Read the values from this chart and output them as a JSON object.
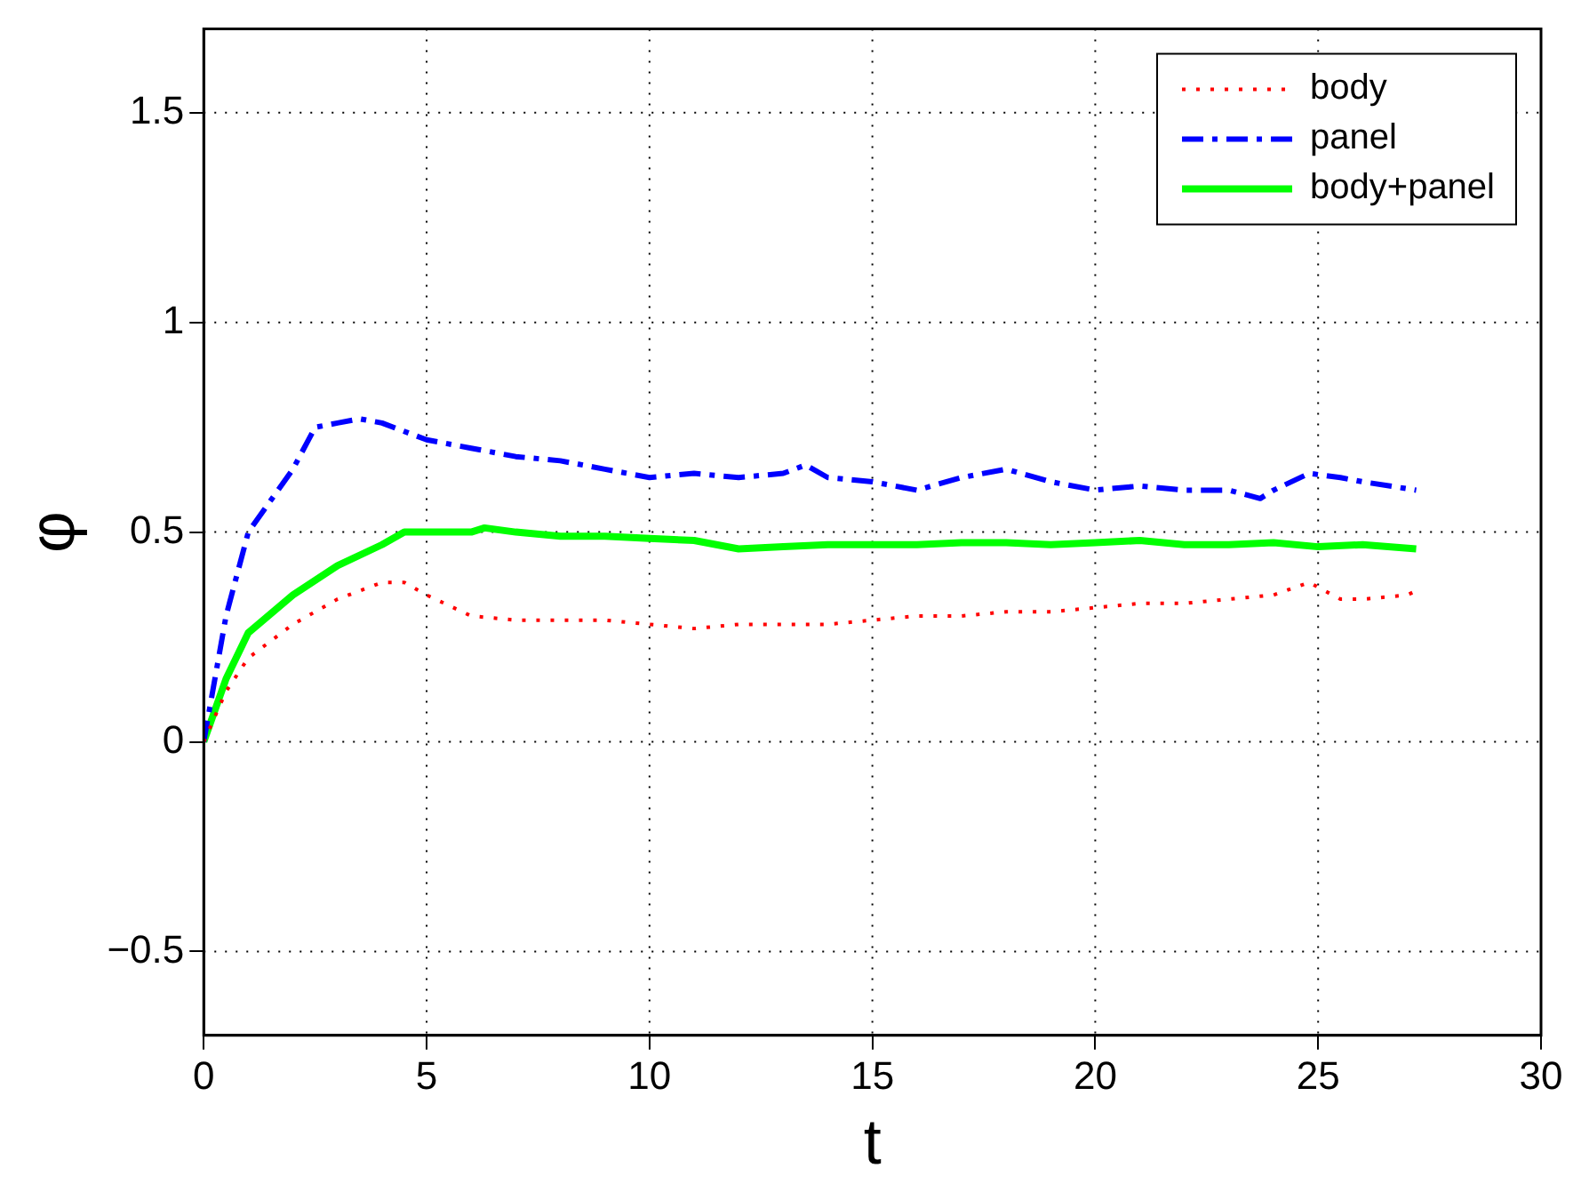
{
  "chart_data": {
    "type": "line",
    "xlabel": "t",
    "ylabel": "φ",
    "xlim": [
      0,
      30
    ],
    "xticks": [
      0,
      5,
      10,
      15,
      20,
      25,
      30
    ],
    "ylim": [
      -0.7,
      1.7
    ],
    "yticks": [
      {
        "value": -0.5,
        "label": "−0.5"
      },
      0,
      0.5,
      1,
      1.5
    ],
    "grid": true,
    "legend": "top right",
    "marker": "none",
    "series": [
      {
        "name": "body",
        "color": "#ff0000",
        "line_style": "dotted",
        "x": [
          0,
          0.5,
          1,
          2,
          3,
          4,
          4.5,
          5,
          6,
          7,
          8,
          9,
          10,
          11,
          12,
          13,
          14,
          15,
          16,
          17,
          18,
          19,
          20,
          21,
          22,
          23,
          24,
          24.8,
          25.5,
          26,
          27,
          27.2
        ],
        "values": [
          0,
          0.12,
          0.2,
          0.28,
          0.34,
          0.38,
          0.38,
          0.35,
          0.3,
          0.29,
          0.29,
          0.29,
          0.28,
          0.27,
          0.28,
          0.28,
          0.28,
          0.29,
          0.3,
          0.3,
          0.31,
          0.31,
          0.32,
          0.33,
          0.33,
          0.34,
          0.35,
          0.38,
          0.34,
          0.34,
          0.35,
          0.36
        ]
      },
      {
        "name": "panel",
        "color": "#0000ff",
        "line_style": "dashdot",
        "x": [
          0,
          0.5,
          1,
          2,
          2.5,
          3,
          3.5,
          4,
          5,
          6,
          7,
          8,
          9,
          10,
          11,
          12,
          13,
          13.5,
          14,
          15,
          16,
          17,
          18,
          19,
          20,
          21,
          22,
          23,
          23.7,
          24,
          24.8,
          25.5,
          26,
          27.2
        ],
        "values": [
          0,
          0.3,
          0.5,
          0.65,
          0.75,
          0.76,
          0.77,
          0.76,
          0.72,
          0.7,
          0.68,
          0.67,
          0.65,
          0.63,
          0.64,
          0.63,
          0.64,
          0.66,
          0.63,
          0.62,
          0.6,
          0.63,
          0.65,
          0.62,
          0.6,
          0.61,
          0.6,
          0.6,
          0.58,
          0.6,
          0.64,
          0.63,
          0.62,
          0.6
        ]
      },
      {
        "name": "body+panel",
        "color": "#00ff00",
        "line_style": "solid",
        "x": [
          0,
          0.5,
          1,
          2,
          3,
          4,
          4.5,
          5,
          6,
          6.3,
          7,
          8,
          9,
          10,
          11,
          12,
          13,
          14,
          15,
          16,
          17,
          18,
          19,
          20,
          21,
          22,
          23,
          24,
          25,
          26,
          27.2
        ],
        "values": [
          0,
          0.15,
          0.26,
          0.35,
          0.42,
          0.47,
          0.5,
          0.5,
          0.5,
          0.51,
          0.5,
          0.49,
          0.49,
          0.485,
          0.48,
          0.46,
          0.465,
          0.47,
          0.47,
          0.47,
          0.475,
          0.475,
          0.47,
          0.475,
          0.48,
          0.47,
          0.47,
          0.475,
          0.465,
          0.47,
          0.46
        ]
      }
    ]
  }
}
